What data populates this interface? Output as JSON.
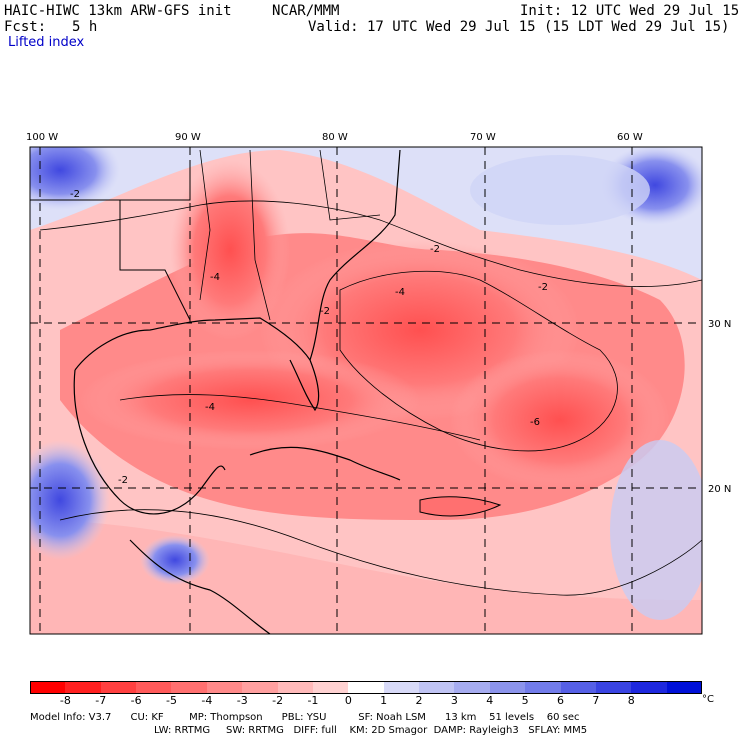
{
  "header": {
    "model_title": "HAIC-HIWC 13km ARW-GFS init",
    "org": "NCAR/MMM",
    "init": "Init: 12 UTC Wed 29 Jul 15",
    "fcst_label": "Fcst:",
    "fcst_value": "5 h",
    "valid": "Valid: 17 UTC Wed 29 Jul 15 (15 LDT Wed 29 Jul 15)",
    "field_name": "Lifted index"
  },
  "map": {
    "lon_labels": [
      "100 W",
      "90 W",
      "80 W",
      "70 W",
      "60 W"
    ],
    "lat_labels": [
      "30 N",
      "20 N"
    ],
    "contour_labels": [
      "-2",
      "-2",
      "-4",
      "-6",
      "-2",
      "-4",
      "-2",
      "-2",
      "-4"
    ]
  },
  "legend": {
    "ticks": [
      "-8",
      "-7",
      "-6",
      "-5",
      "-4",
      "-3",
      "-2",
      "-1",
      "0",
      "1",
      "2",
      "3",
      "4",
      "5",
      "6",
      "7",
      "8"
    ],
    "unit": "°C",
    "colors": [
      "#ff0000",
      "#ff2020",
      "#ff4040",
      "#ff5a5a",
      "#ff7070",
      "#ff8a8a",
      "#ffa0a0",
      "#ffbaba",
      "#ffd2d2",
      "#ffffff",
      "#d8daf8",
      "#c0c4f4",
      "#a6acf0",
      "#8c94ec",
      "#727cea",
      "#5660e6",
      "#3a44e2",
      "#1e28de",
      "#0010d8"
    ]
  },
  "info": {
    "line1": "Model Info: V3.7      CU: KF        MP: Thompson      PBL: YSU          SF: Noah LSM      13 km    51 levels    60 sec",
    "line2": "LW: RRTMG     SW: RRTMG   DIFF: full    KM: 2D Smagor  DAMP: Rayleigh3   SFLAY: MM5"
  }
}
